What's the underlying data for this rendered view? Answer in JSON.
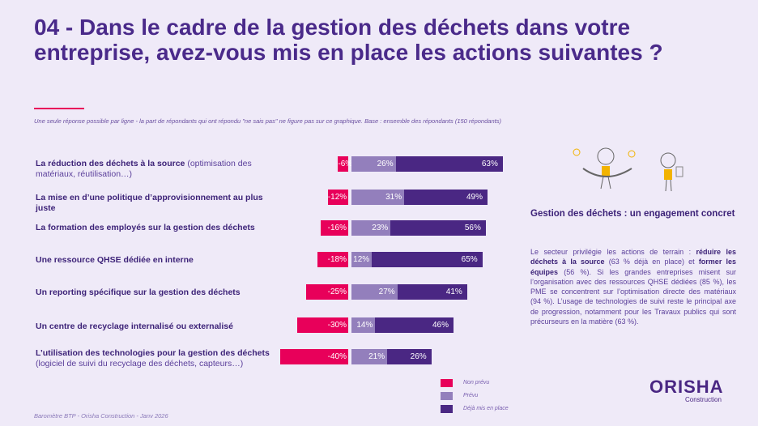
{
  "title": "04 - Dans le cadre de la gestion des déchets dans votre entreprise, avez-vous mis en place les actions suivantes ?",
  "subtitle": "Une seule réponse possible par ligne - la part de répondants qui ont répondu \"ne sais pas\"  ne figure pas sur ce graphique. Base : ensemble des répondants (150 répondants)",
  "chart_data": {
    "type": "bar",
    "orientation": "horizontal-diverging-stacked",
    "categories": [
      {
        "bold": "La réduction des déchets à la source",
        "rest": " (optimisation des matériaux, réutilisation…)"
      },
      {
        "bold": "La mise en d’une politique d’approvisionnement au plus juste",
        "rest": ""
      },
      {
        "bold": "La formation des employés sur la gestion des déchets",
        "rest": ""
      },
      {
        "bold": "Une ressource QHSE dédiée en interne",
        "rest": ""
      },
      {
        "bold": "Un reporting spécifique sur la gestion des déchets",
        "rest": ""
      },
      {
        "bold": "Un centre de recyclage internalisé ou externalisé",
        "rest": ""
      },
      {
        "bold": "L’utilisation des technologies pour la gestion des déchets",
        "rest": " (logiciel de suivi du recyclage des déchets, capteurs…)"
      }
    ],
    "series": [
      {
        "name": "Non prévu",
        "color": "#e8005a",
        "values": [
          -6,
          -12,
          -16,
          -18,
          -25,
          -30,
          -40
        ]
      },
      {
        "name": "Prévu",
        "color": "#937fbc",
        "values": [
          26,
          31,
          23,
          12,
          27,
          14,
          21
        ]
      },
      {
        "name": "Déjà mis en place",
        "color": "#4a2783",
        "values": [
          63,
          49,
          56,
          65,
          41,
          46,
          26
        ]
      }
    ],
    "value_format": "%",
    "legend": "bottom-right"
  },
  "side": {
    "heading": "Gestion des déchets : un engagement concret",
    "p1": "Le secteur privilégie les actions de terrain : ",
    "b1": "réduire les déchets à la source",
    "p2": " (63 % déjà en place) et ",
    "b2": "former les équipes",
    "p3": " (56 %). Si les grandes entreprises misent sur l’organisation avec des ressources QHSE dédiées (85 %), les PME se concentrent sur l’optimisation directe des matériaux (94 %). L’usage de technologies de suivi reste le principal axe de progression, notamment pour les Travaux publics qui sont précurseurs en la matière (63 %)."
  },
  "footer": "Baromètre BTP - Orisha Construction - Janv 2026",
  "logo": {
    "name": "ORISHA",
    "tagline": "Construction"
  }
}
